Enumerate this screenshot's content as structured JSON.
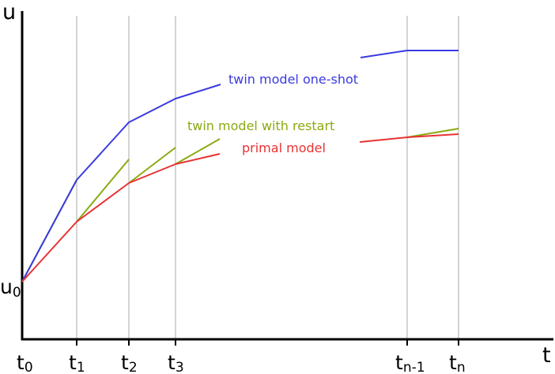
{
  "colors": {
    "one_shot": "#3a3ae0",
    "restart": "#8aaa10",
    "primal": "#e83232",
    "axis": "#000000",
    "grid": "#a8a8a8"
  },
  "axis": {
    "x_label": "t",
    "y_label": "u",
    "y_origin_label": {
      "base": "u",
      "sub": "0"
    }
  },
  "ticks": [
    {
      "id": "t0",
      "base": "t",
      "sub": "0"
    },
    {
      "id": "t1",
      "base": "t",
      "sub": "1"
    },
    {
      "id": "t2",
      "base": "t",
      "sub": "2"
    },
    {
      "id": "t3",
      "base": "t",
      "sub": "3"
    },
    {
      "id": "tn1",
      "base": "t",
      "sub": "n-1"
    },
    {
      "id": "tn",
      "base": "t",
      "sub": "n"
    }
  ],
  "labels": {
    "one_shot": "twin model one-shot",
    "restart": "twin model with restart",
    "primal": "primal model"
  }
}
